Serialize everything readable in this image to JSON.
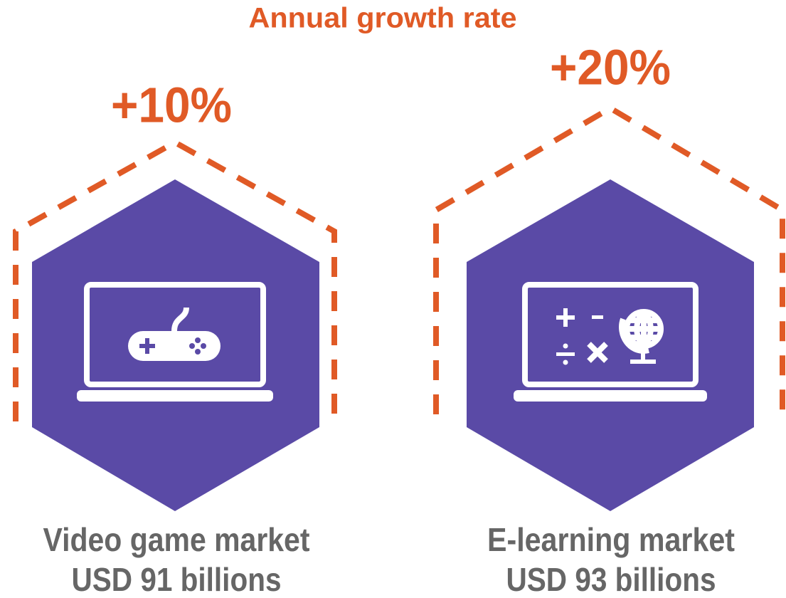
{
  "title": "Annual growth rate",
  "items": [
    {
      "growth": "+10%",
      "market": "Video game market",
      "size": "USD 91 billions"
    },
    {
      "growth": "+20%",
      "market": "E-learning market",
      "size": "USD 93 billions"
    }
  ]
}
